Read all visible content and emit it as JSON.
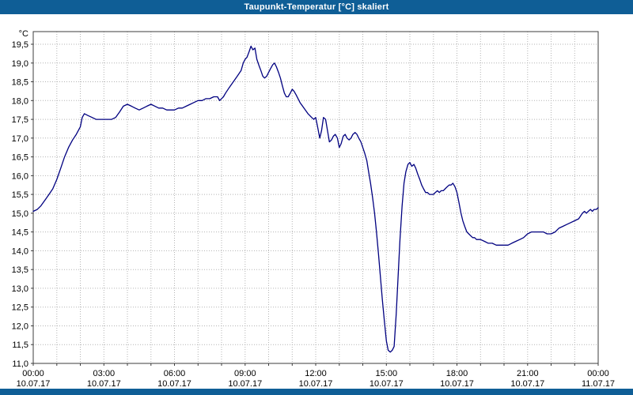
{
  "title": "Taupunkt-Temperatur [°C] skaliert",
  "colors": {
    "title_bar": "#0f5e96",
    "line": "#000080",
    "grid": "#b3b3b3",
    "frame": "#3c3c3c",
    "background": "#ffffff",
    "title_text": "#ffffff"
  },
  "chart_data": {
    "type": "line",
    "title": "Taupunkt-Temperatur [°C] skaliert",
    "xlabel": "",
    "ylabel": "°C",
    "ylim": [
      11.0,
      19.5
    ],
    "y_step": 0.5,
    "xlim_hours": [
      0,
      24
    ],
    "x_grid_step_hours": 1,
    "grid": true,
    "legend": "none",
    "line_color": "#000080",
    "y_ticks": [
      "19,5",
      "19,0",
      "18,5",
      "18,0",
      "17,5",
      "17,0",
      "16,5",
      "16,0",
      "15,5",
      "15,0",
      "14,5",
      "14,0",
      "13,5",
      "13,0",
      "12,5",
      "12,0",
      "11,5",
      "11,0"
    ],
    "x_ticks": [
      {
        "hour": 0,
        "time": "00:00",
        "date": "10.07.17"
      },
      {
        "hour": 3,
        "time": "03:00",
        "date": "10.07.17"
      },
      {
        "hour": 6,
        "time": "06:00",
        "date": "10.07.17"
      },
      {
        "hour": 9,
        "time": "09:00",
        "date": "10.07.17"
      },
      {
        "hour": 12,
        "time": "12:00",
        "date": "10.07.17"
      },
      {
        "hour": 15,
        "time": "15:00",
        "date": "10.07.17"
      },
      {
        "hour": 18,
        "time": "18:00",
        "date": "10.07.17"
      },
      {
        "hour": 21,
        "time": "21:00",
        "date": "10.07.17"
      },
      {
        "hour": 24,
        "time": "00:00",
        "date": "11.07.17"
      }
    ],
    "series": [
      {
        "name": "Taupunkt-Temperatur",
        "points": [
          [
            0.0,
            15.05
          ],
          [
            0.17,
            15.1
          ],
          [
            0.33,
            15.2
          ],
          [
            0.5,
            15.35
          ],
          [
            0.67,
            15.5
          ],
          [
            0.83,
            15.65
          ],
          [
            1.0,
            15.9
          ],
          [
            1.17,
            16.2
          ],
          [
            1.33,
            16.5
          ],
          [
            1.5,
            16.75
          ],
          [
            1.67,
            16.95
          ],
          [
            1.83,
            17.1
          ],
          [
            2.0,
            17.3
          ],
          [
            2.08,
            17.55
          ],
          [
            2.17,
            17.65
          ],
          [
            2.33,
            17.6
          ],
          [
            2.5,
            17.55
          ],
          [
            2.67,
            17.5
          ],
          [
            2.83,
            17.5
          ],
          [
            3.0,
            17.5
          ],
          [
            3.17,
            17.5
          ],
          [
            3.33,
            17.5
          ],
          [
            3.5,
            17.55
          ],
          [
            3.67,
            17.7
          ],
          [
            3.83,
            17.85
          ],
          [
            4.0,
            17.9
          ],
          [
            4.17,
            17.85
          ],
          [
            4.33,
            17.8
          ],
          [
            4.5,
            17.75
          ],
          [
            4.67,
            17.8
          ],
          [
            4.83,
            17.85
          ],
          [
            5.0,
            17.9
          ],
          [
            5.17,
            17.85
          ],
          [
            5.33,
            17.8
          ],
          [
            5.5,
            17.8
          ],
          [
            5.67,
            17.75
          ],
          [
            5.83,
            17.75
          ],
          [
            6.0,
            17.75
          ],
          [
            6.17,
            17.8
          ],
          [
            6.33,
            17.8
          ],
          [
            6.5,
            17.85
          ],
          [
            6.67,
            17.9
          ],
          [
            6.83,
            17.95
          ],
          [
            7.0,
            18.0
          ],
          [
            7.17,
            18.0
          ],
          [
            7.33,
            18.05
          ],
          [
            7.5,
            18.05
          ],
          [
            7.67,
            18.1
          ],
          [
            7.83,
            18.1
          ],
          [
            7.92,
            18.0
          ],
          [
            8.0,
            18.05
          ],
          [
            8.08,
            18.1
          ],
          [
            8.17,
            18.2
          ],
          [
            8.33,
            18.35
          ],
          [
            8.5,
            18.5
          ],
          [
            8.67,
            18.65
          ],
          [
            8.83,
            18.8
          ],
          [
            8.92,
            19.0
          ],
          [
            9.0,
            19.1
          ],
          [
            9.08,
            19.15
          ],
          [
            9.17,
            19.3
          ],
          [
            9.25,
            19.45
          ],
          [
            9.33,
            19.35
          ],
          [
            9.42,
            19.4
          ],
          [
            9.5,
            19.1
          ],
          [
            9.58,
            18.95
          ],
          [
            9.67,
            18.8
          ],
          [
            9.75,
            18.65
          ],
          [
            9.83,
            18.6
          ],
          [
            9.92,
            18.65
          ],
          [
            10.0,
            18.75
          ],
          [
            10.08,
            18.85
          ],
          [
            10.17,
            18.95
          ],
          [
            10.25,
            19.0
          ],
          [
            10.33,
            18.9
          ],
          [
            10.42,
            18.75
          ],
          [
            10.5,
            18.6
          ],
          [
            10.58,
            18.4
          ],
          [
            10.67,
            18.2
          ],
          [
            10.75,
            18.1
          ],
          [
            10.83,
            18.1
          ],
          [
            10.92,
            18.2
          ],
          [
            11.0,
            18.3
          ],
          [
            11.08,
            18.25
          ],
          [
            11.17,
            18.15
          ],
          [
            11.25,
            18.05
          ],
          [
            11.33,
            17.95
          ],
          [
            11.5,
            17.8
          ],
          [
            11.67,
            17.65
          ],
          [
            11.83,
            17.55
          ],
          [
            11.92,
            17.5
          ],
          [
            12.0,
            17.55
          ],
          [
            12.08,
            17.3
          ],
          [
            12.17,
            17.0
          ],
          [
            12.25,
            17.2
          ],
          [
            12.33,
            17.55
          ],
          [
            12.42,
            17.5
          ],
          [
            12.5,
            17.2
          ],
          [
            12.58,
            16.9
          ],
          [
            12.67,
            16.95
          ],
          [
            12.75,
            17.05
          ],
          [
            12.83,
            17.1
          ],
          [
            12.92,
            17.0
          ],
          [
            13.0,
            16.75
          ],
          [
            13.08,
            16.85
          ],
          [
            13.17,
            17.05
          ],
          [
            13.25,
            17.1
          ],
          [
            13.33,
            17.0
          ],
          [
            13.42,
            16.95
          ],
          [
            13.5,
            17.0
          ],
          [
            13.58,
            17.1
          ],
          [
            13.67,
            17.15
          ],
          [
            13.75,
            17.1
          ],
          [
            13.83,
            17.0
          ],
          [
            13.92,
            16.9
          ],
          [
            14.0,
            16.75
          ],
          [
            14.08,
            16.6
          ],
          [
            14.17,
            16.4
          ],
          [
            14.25,
            16.1
          ],
          [
            14.33,
            15.8
          ],
          [
            14.42,
            15.4
          ],
          [
            14.5,
            15.0
          ],
          [
            14.58,
            14.5
          ],
          [
            14.67,
            13.9
          ],
          [
            14.75,
            13.3
          ],
          [
            14.83,
            12.7
          ],
          [
            14.92,
            12.1
          ],
          [
            15.0,
            11.6
          ],
          [
            15.08,
            11.35
          ],
          [
            15.17,
            11.3
          ],
          [
            15.25,
            11.35
          ],
          [
            15.33,
            11.45
          ],
          [
            15.42,
            12.3
          ],
          [
            15.5,
            13.3
          ],
          [
            15.58,
            14.3
          ],
          [
            15.67,
            15.2
          ],
          [
            15.75,
            15.8
          ],
          [
            15.83,
            16.1
          ],
          [
            15.92,
            16.3
          ],
          [
            16.0,
            16.35
          ],
          [
            16.08,
            16.25
          ],
          [
            16.17,
            16.3
          ],
          [
            16.25,
            16.2
          ],
          [
            16.33,
            16.05
          ],
          [
            16.42,
            15.9
          ],
          [
            16.5,
            15.75
          ],
          [
            16.58,
            15.65
          ],
          [
            16.67,
            15.55
          ],
          [
            16.75,
            15.55
          ],
          [
            16.83,
            15.5
          ],
          [
            16.92,
            15.5
          ],
          [
            17.0,
            15.5
          ],
          [
            17.08,
            15.55
          ],
          [
            17.17,
            15.6
          ],
          [
            17.25,
            15.55
          ],
          [
            17.33,
            15.6
          ],
          [
            17.42,
            15.6
          ],
          [
            17.5,
            15.65
          ],
          [
            17.58,
            15.7
          ],
          [
            17.67,
            15.75
          ],
          [
            17.75,
            15.75
          ],
          [
            17.83,
            15.8
          ],
          [
            17.92,
            15.7
          ],
          [
            18.0,
            15.55
          ],
          [
            18.08,
            15.3
          ],
          [
            18.17,
            15.0
          ],
          [
            18.25,
            14.8
          ],
          [
            18.33,
            14.65
          ],
          [
            18.42,
            14.5
          ],
          [
            18.5,
            14.45
          ],
          [
            18.58,
            14.4
          ],
          [
            18.67,
            14.35
          ],
          [
            18.75,
            14.35
          ],
          [
            18.83,
            14.3
          ],
          [
            19.0,
            14.3
          ],
          [
            19.17,
            14.25
          ],
          [
            19.33,
            14.2
          ],
          [
            19.5,
            14.2
          ],
          [
            19.67,
            14.15
          ],
          [
            19.83,
            14.15
          ],
          [
            20.0,
            14.15
          ],
          [
            20.17,
            14.15
          ],
          [
            20.33,
            14.2
          ],
          [
            20.5,
            14.25
          ],
          [
            20.67,
            14.3
          ],
          [
            20.83,
            14.35
          ],
          [
            21.0,
            14.45
          ],
          [
            21.17,
            14.5
          ],
          [
            21.33,
            14.5
          ],
          [
            21.5,
            14.5
          ],
          [
            21.67,
            14.5
          ],
          [
            21.83,
            14.45
          ],
          [
            22.0,
            14.45
          ],
          [
            22.17,
            14.5
          ],
          [
            22.33,
            14.6
          ],
          [
            22.5,
            14.65
          ],
          [
            22.67,
            14.7
          ],
          [
            22.83,
            14.75
          ],
          [
            23.0,
            14.8
          ],
          [
            23.17,
            14.85
          ],
          [
            23.33,
            15.0
          ],
          [
            23.42,
            15.05
          ],
          [
            23.5,
            15.0
          ],
          [
            23.58,
            15.05
          ],
          [
            23.67,
            15.1
          ],
          [
            23.75,
            15.05
          ],
          [
            23.83,
            15.1
          ],
          [
            23.92,
            15.1
          ],
          [
            24.0,
            15.15
          ]
        ]
      }
    ]
  }
}
